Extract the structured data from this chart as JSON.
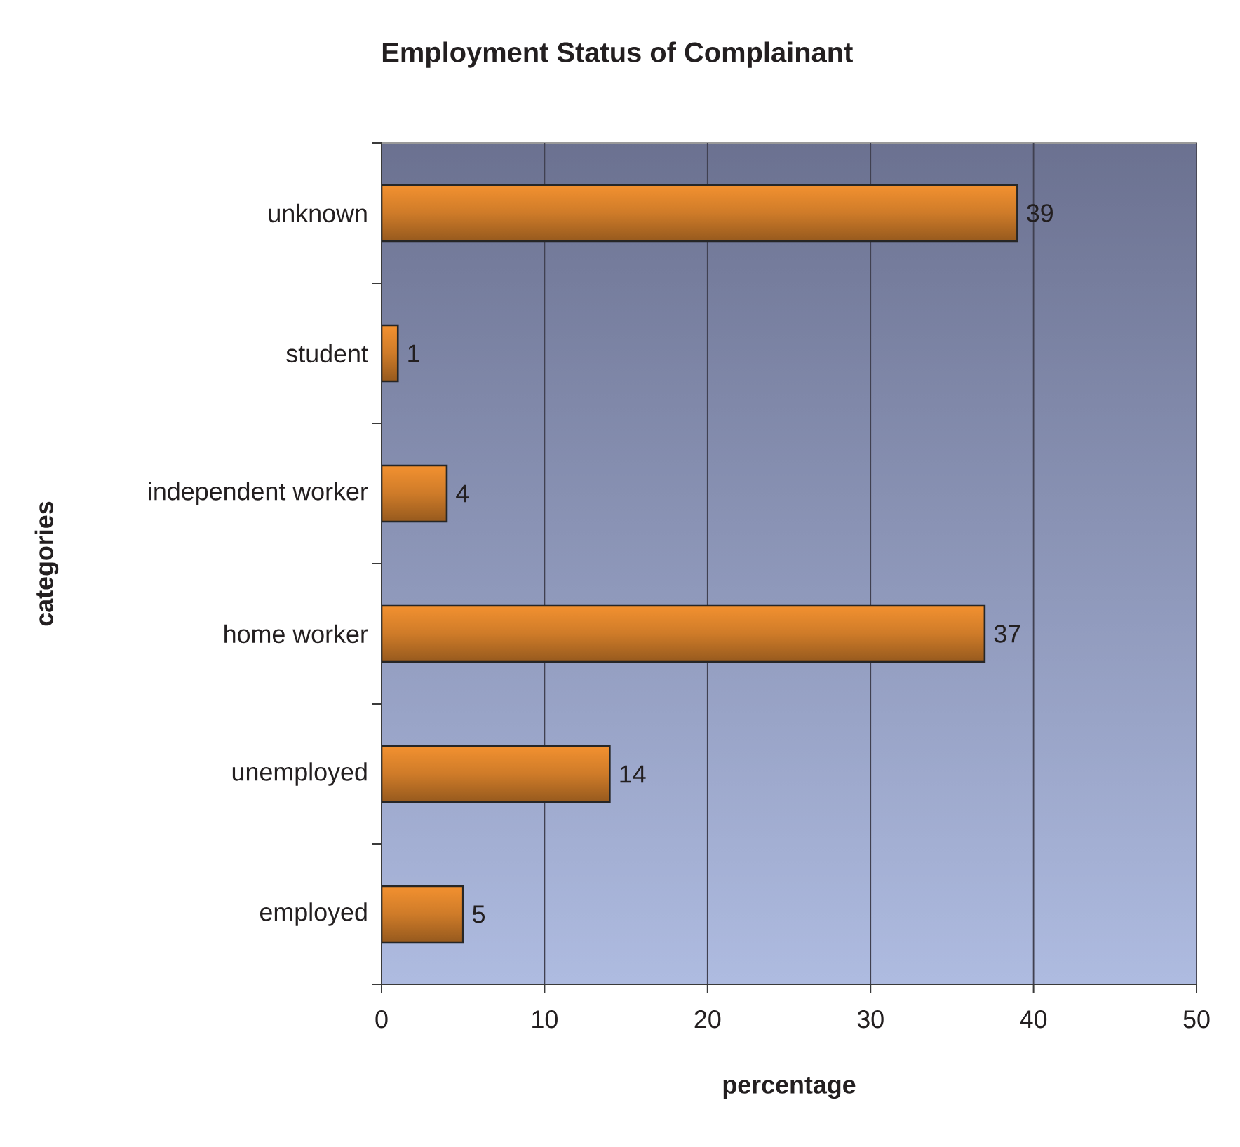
{
  "chart_data": {
    "type": "bar",
    "orientation": "horizontal",
    "title": "Employment Status of Complainant",
    "xlabel": "percentage",
    "ylabel": "categories",
    "categories": [
      "unknown",
      "student",
      "independent worker",
      "home worker",
      "unemployed",
      "employed"
    ],
    "values": [
      39,
      1,
      4,
      37,
      14,
      5
    ],
    "color": "#f39130",
    "xlim": [
      0,
      50
    ],
    "xticks": [
      0,
      10,
      20,
      30,
      40,
      50
    ],
    "grid": "x",
    "data_labels": true
  }
}
